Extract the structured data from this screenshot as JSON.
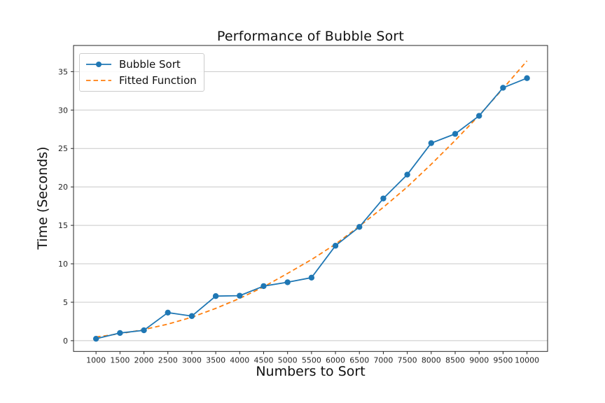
{
  "figure": {
    "background": "#ffffff"
  },
  "chart_data": {
    "type": "line",
    "title": "Performance of Bubble Sort",
    "xlabel": "Numbers to Sort",
    "ylabel": "Time (Seconds)",
    "x": [
      1000,
      1500,
      2000,
      2500,
      3000,
      3500,
      4000,
      4500,
      5000,
      5500,
      6000,
      6500,
      7000,
      7500,
      8000,
      8500,
      9000,
      9500,
      10000
    ],
    "series": [
      {
        "name": "Bubble Sort",
        "color": "#1f77b4",
        "style": "solid",
        "marker": "circle",
        "values": [
          0.25,
          1.0,
          1.35,
          3.65,
          3.2,
          5.8,
          5.85,
          7.1,
          7.6,
          8.2,
          12.35,
          14.8,
          18.5,
          21.6,
          25.7,
          26.9,
          29.25,
          32.9,
          34.15
        ]
      },
      {
        "name": "Fitted Function",
        "color": "#ff7f0e",
        "style": "dashed",
        "marker": "none",
        "values": [
          0.48,
          0.9,
          1.45,
          2.15,
          3.05,
          4.2,
          5.5,
          7.0,
          8.75,
          10.55,
          12.55,
          14.9,
          17.35,
          20.0,
          22.95,
          26.05,
          29.3,
          32.8,
          36.4
        ]
      }
    ],
    "xticks": [
      1000,
      1500,
      2000,
      2500,
      3000,
      3500,
      4000,
      4500,
      5000,
      5500,
      6000,
      6500,
      7000,
      7500,
      8000,
      8500,
      9000,
      9500,
      10000
    ],
    "yticks": [
      0,
      5,
      10,
      15,
      20,
      25,
      30,
      35
    ],
    "xlim": [
      530,
      10430
    ],
    "ylim": [
      -1.4,
      38.4
    ],
    "grid": "horizontal",
    "grid_color": "#c8c8c8",
    "spine_color": "#262626",
    "tick_label_color": "#262626",
    "legend_position": "upper-left"
  }
}
